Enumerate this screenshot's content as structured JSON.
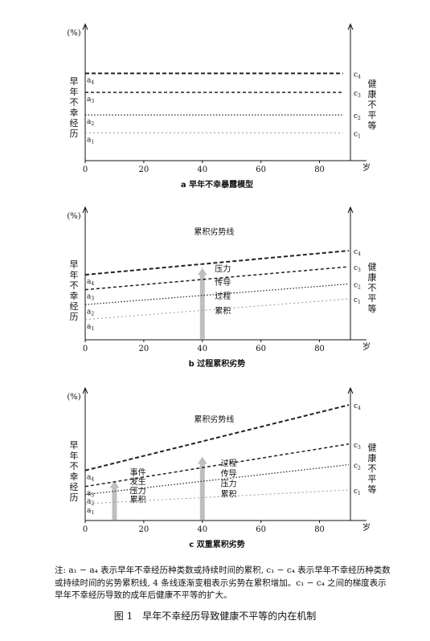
{
  "chart_data": [
    {
      "type": "line",
      "subtitle": "a 早年不幸暴露模型",
      "y_unit": "(%)",
      "left_label": "早年不幸经历",
      "right_label": "健康不平等",
      "x_unit": "岁",
      "xlim": [
        0,
        90
      ],
      "ylim": [
        0,
        100
      ],
      "xticks": [
        0,
        20,
        40,
        60,
        80
      ],
      "series": [
        {
          "label": "a4",
          "end_label": "c4",
          "x": [
            0,
            88
          ],
          "values": [
            68,
            68
          ]
        },
        {
          "label": "a3",
          "end_label": "c3",
          "x": [
            0,
            88
          ],
          "values": [
            52,
            52
          ]
        },
        {
          "label": "a2",
          "end_label": "c2",
          "x": [
            0,
            88
          ],
          "values": [
            33,
            33
          ]
        },
        {
          "label": "a1",
          "end_label": "c1",
          "x": [
            0,
            88
          ],
          "values": [
            18,
            18
          ]
        }
      ],
      "annotations": [],
      "arrows": []
    },
    {
      "type": "line",
      "subtitle": "b 过程累积劣势",
      "y_unit": "(%)",
      "left_label": "早年不幸经历",
      "right_label": "健康不平等",
      "x_unit": "岁",
      "xlim": [
        0,
        90
      ],
      "ylim": [
        0,
        100
      ],
      "xticks": [
        0,
        20,
        40,
        60,
        80
      ],
      "series": [
        {
          "label": "a4",
          "end_label": "c4",
          "x": [
            0,
            90
          ],
          "values": [
            51,
            72
          ]
        },
        {
          "label": "a3",
          "end_label": "c3",
          "x": [
            0,
            90
          ],
          "values": [
            38,
            58
          ]
        },
        {
          "label": "a2",
          "end_label": "c2",
          "x": [
            0,
            90
          ],
          "values": [
            25,
            43
          ]
        },
        {
          "label": "a1",
          "end_label": "c1",
          "x": [
            0,
            90
          ],
          "values": [
            12,
            30
          ]
        }
      ],
      "annotations": [
        {
          "text": "累积劣势线",
          "x": 44,
          "y": 86
        },
        {
          "text": "压力",
          "x": 47,
          "y": 54
        },
        {
          "text": "传导",
          "x": 47,
          "y": 42
        },
        {
          "text": "过程",
          "x": 47,
          "y": 30
        },
        {
          "text": "累积",
          "x": 47,
          "y": 17
        }
      ],
      "arrows": [
        {
          "x": 40,
          "from": 0,
          "to": 57
        }
      ]
    },
    {
      "type": "line",
      "subtitle": "c 双重累积劣势",
      "y_unit": "(%)",
      "left_label": "早年不幸经历",
      "right_label": "健康不平等",
      "x_unit": "岁",
      "xlim": [
        0,
        90
      ],
      "ylim": [
        0,
        100
      ],
      "xticks": [
        0,
        20,
        40,
        60,
        80
      ],
      "series": [
        {
          "label": "a4",
          "end_label": "c4",
          "x": [
            0,
            90
          ],
          "values": [
            38,
            95
          ]
        },
        {
          "label": "a3",
          "end_label": "c3",
          "x": [
            0,
            90
          ],
          "values": [
            24,
            61
          ]
        },
        {
          "label": "a2",
          "end_label": "c2",
          "x": [
            0,
            90
          ],
          "values": [
            17,
            43
          ]
        },
        {
          "label": "a1",
          "end_label": "c1",
          "x": [
            0,
            90
          ],
          "values": [
            9,
            21
          ]
        }
      ],
      "annotations": [
        {
          "text": "累积劣势线",
          "x": 44,
          "y": 80
        },
        {
          "text": "事件",
          "x": 18,
          "y": 34
        },
        {
          "text": "发生",
          "x": 18,
          "y": 26
        },
        {
          "text": "压力",
          "x": 18,
          "y": 18
        },
        {
          "text": "累积",
          "x": 18,
          "y": 10
        },
        {
          "text": "过程",
          "x": 49,
          "y": 42
        },
        {
          "text": "传导",
          "x": 49,
          "y": 33
        },
        {
          "text": "压力",
          "x": 49,
          "y": 24
        },
        {
          "text": "累积",
          "x": 49,
          "y": 15
        }
      ],
      "arrows": [
        {
          "x": 10,
          "from": 0,
          "to": 29
        },
        {
          "x": 40,
          "from": 0,
          "to": 50
        }
      ]
    }
  ],
  "note": "注: a₁ − a₄ 表示早年不幸经历种类数或持续时间的累积, c₁ − c₄ 表示早年不幸经历种类数或持续时间的劣势累积线, 4 条线逐渐变粗表示劣势在累积增加。c₁ − c₄ 之间的梯度表示早年不幸经历导致的成年后健康不平等的扩大。",
  "caption": "图 1　早年不幸经历导致健康不平等的内在机制"
}
